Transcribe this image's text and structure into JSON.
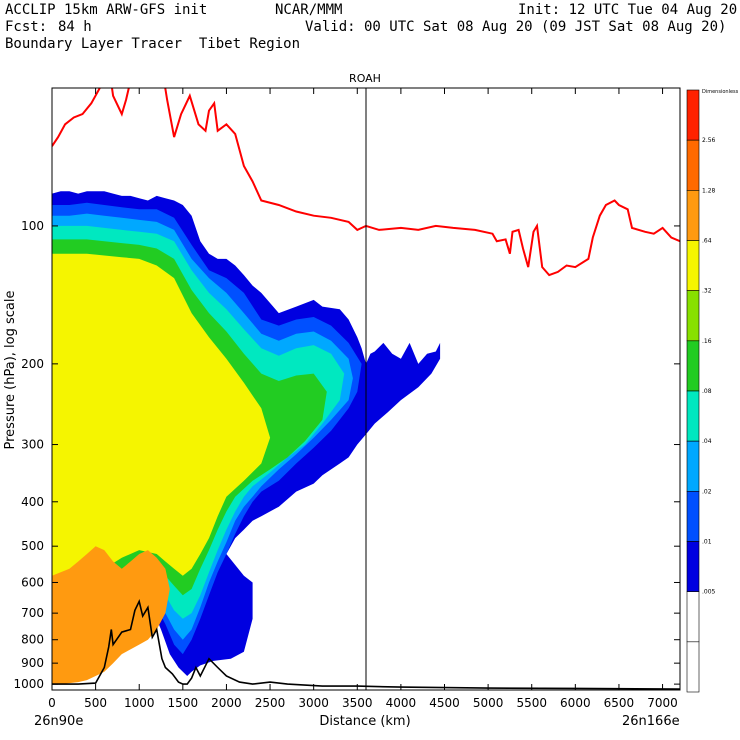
{
  "header": {
    "model": "ACCLIP 15km ARW-GFS init",
    "org": "NCAR/MMM",
    "init": "Init: 12 UTC Tue 04 Aug 20",
    "fcst_label": "Fcst:",
    "fcst_value": "84 h",
    "valid": "Valid: 00 UTC Sat 08 Aug 20 (09 JST Sat 08 Aug 20)",
    "product": "Boundary Layer Tracer  Tibet Region"
  },
  "chart_data": {
    "type": "heatmap",
    "title": "ROAH",
    "xlabel": "Distance (km)",
    "ylabel": "Pressure (hPa), log scale",
    "xlim": [
      0,
      7200
    ],
    "ylim": [
      1030,
      50
    ],
    "x_ticks": [
      0,
      500,
      1000,
      1500,
      2000,
      2500,
      3000,
      3500,
      4000,
      4500,
      5000,
      5500,
      6000,
      6500,
      7000
    ],
    "y_ticks": [
      100,
      200,
      300,
      400,
      500,
      600,
      700,
      800,
      900,
      1000
    ],
    "x_start_label": "26n90e",
    "x_end_label": "26n166e",
    "vertical_marker_km": 3600,
    "colorbar": {
      "labels": [
        "Dimensionless",
        "2.56",
        "1.28",
        ".64",
        ".32",
        ".16",
        ".08",
        ".04",
        ".02",
        ".01",
        ".005"
      ],
      "colors": [
        "#ff2200",
        "#ff6a00",
        "#ff9a10",
        "#f5f500",
        "#88e000",
        "#22cc22",
        "#00e8c0",
        "#00a8ff",
        "#0050ff",
        "#0000e0",
        "#ffffff",
        "#ffffff"
      ]
    },
    "tropopause_line": {
      "color": "#ff0000",
      "x": [
        0,
        70,
        150,
        250,
        350,
        450,
        600,
        660,
        700,
        800,
        850,
        880,
        960,
        1050,
        1130,
        1200,
        1260,
        1320,
        1400,
        1480,
        1500,
        1580,
        1680,
        1760,
        1800,
        1860,
        1900,
        2000,
        2100,
        2200,
        2300,
        2400,
        2600,
        2800,
        3000,
        3200,
        3400,
        3500,
        3600,
        3750,
        4000,
        4200,
        4400,
        4600,
        4850,
        5050,
        5100,
        5200,
        5250,
        5280,
        5350,
        5400,
        5460,
        5520,
        5560,
        5620,
        5700,
        5800,
        5900,
        6000,
        6150,
        6200,
        6280,
        6350,
        6450,
        6500,
        6600,
        6650,
        6800,
        6900,
        7000,
        7100,
        7200
      ],
      "p": [
        67,
        64,
        60,
        58,
        57,
        54,
        48,
        46,
        52,
        57,
        53,
        50,
        44,
        28,
        30,
        27,
        45,
        53,
        64,
        57,
        56,
        52,
        60,
        62,
        56,
        54,
        62,
        60,
        63,
        74,
        80,
        88,
        90,
        93,
        95,
        96,
        98,
        102,
        100,
        102,
        101,
        102,
        100,
        101,
        102,
        104,
        108,
        107,
        115,
        103,
        102,
        112,
        123,
        103,
        100,
        123,
        128,
        126,
        122,
        123,
        118,
        106,
        95,
        90,
        88,
        90,
        92,
        101,
        103,
        104,
        101,
        106,
        108
      ]
    },
    "terrain_line": {
      "color": "#000000",
      "x": [
        0,
        300,
        500,
        600,
        650,
        680,
        700,
        800,
        900,
        950,
        1000,
        1040,
        1100,
        1150,
        1200,
        1260,
        1300,
        1380,
        1450,
        1500,
        1550,
        1600,
        1650,
        1700,
        1800,
        1900,
        2000,
        2150,
        2300,
        2500,
        2700,
        2900,
        3100,
        3500,
        4000,
        5000,
        6000,
        7200
      ],
      "p": [
        1000,
        1000,
        995,
        920,
        830,
        760,
        820,
        770,
        760,
        690,
        660,
        710,
        680,
        790,
        760,
        880,
        920,
        950,
        990,
        1000,
        1000,
        970,
        920,
        960,
        880,
        920,
        960,
        990,
        1000,
        990,
        1000,
        1005,
        1010,
        1010,
        1015,
        1020,
        1022,
        1025
      ]
    },
    "tracer_fields": [
      {
        "level": "0.01",
        "color": "#0000e0",
        "x": [
          0,
          100,
          200,
          300,
          400,
          500,
          600,
          700,
          800,
          900,
          1000,
          1100,
          1200,
          1300,
          1400,
          1500,
          1600,
          1700,
          1800,
          1900,
          2000,
          2100,
          2200,
          2300,
          2400,
          2600,
          2800,
          3000,
          3100,
          3300,
          3400,
          3500,
          3550,
          3600,
          3650,
          3700,
          3800,
          3900,
          4000,
          4100,
          4200,
          4300,
          4400,
          4450,
          4450,
          4350,
          4200,
          4000,
          3850,
          3700,
          3600,
          3500,
          3400,
          3300,
          3200,
          3100,
          3000,
          2800,
          2600,
          2400,
          2300,
          2200,
          2100,
          2000,
          2200,
          2300,
          2300,
          2200,
          2050,
          1850,
          1700,
          1600,
          1550,
          1450,
          1350,
          1250,
          1100,
          1000,
          900,
          700,
          600,
          500,
          300,
          0
        ],
        "p": [
          85,
          84,
          84,
          85,
          84,
          84,
          84,
          85,
          86,
          86,
          87,
          88,
          86,
          87,
          88,
          90,
          95,
          108,
          115,
          118,
          118,
          122,
          128,
          135,
          140,
          155,
          150,
          145,
          150,
          152,
          160,
          175,
          185,
          200,
          190,
          188,
          180,
          190,
          195,
          180,
          200,
          190,
          188,
          180,
          195,
          210,
          225,
          240,
          255,
          270,
          285,
          300,
          320,
          330,
          340,
          350,
          365,
          380,
          410,
          430,
          440,
          460,
          480,
          520,
          580,
          600,
          720,
          850,
          880,
          890,
          910,
          940,
          960,
          920,
          860,
          760,
          650,
          600,
          620,
          640,
          660,
          690,
          780,
          820
        ]
      },
      {
        "level": "0.02",
        "color": "#0050ff",
        "x": [
          0,
          200,
          400,
          600,
          800,
          1000,
          1200,
          1400,
          1600,
          1800,
          2000,
          2200,
          2400,
          2600,
          2800,
          3000,
          3200,
          3400,
          3550,
          3500,
          3400,
          3200,
          3000,
          2800,
          2600,
          2400,
          2300,
          2200,
          2100,
          2000,
          1900,
          1800,
          1700,
          1600,
          1500,
          1400,
          1300,
          1200,
          1000,
          800,
          600,
          400,
          200,
          0
        ],
        "p": [
          90,
          90,
          89,
          90,
          91,
          92,
          92,
          96,
          110,
          125,
          130,
          140,
          160,
          165,
          160,
          158,
          165,
          180,
          200,
          230,
          250,
          280,
          305,
          330,
          360,
          380,
          400,
          430,
          470,
          520,
          570,
          640,
          720,
          800,
          860,
          820,
          740,
          680,
          640,
          660,
          690,
          720,
          760,
          800
        ]
      },
      {
        "level": "0.04",
        "color": "#00a8ff",
        "x": [
          0,
          200,
          400,
          600,
          800,
          1000,
          1200,
          1400,
          1600,
          1800,
          2000,
          2200,
          2400,
          2600,
          2800,
          3000,
          3200,
          3400,
          3450,
          3400,
          3200,
          3000,
          2800,
          2600,
          2400,
          2300,
          2200,
          2100,
          2000,
          1900,
          1800,
          1700,
          1600,
          1500,
          1400,
          1300,
          1200,
          1000,
          800,
          600,
          400,
          200,
          0
        ],
        "p": [
          95,
          95,
          94,
          95,
          96,
          97,
          98,
          102,
          118,
          130,
          140,
          155,
          172,
          178,
          172,
          170,
          178,
          195,
          215,
          240,
          265,
          290,
          315,
          340,
          370,
          390,
          410,
          440,
          490,
          540,
          600,
          680,
          760,
          800,
          760,
          700,
          650,
          620,
          630,
          650,
          690,
          730,
          780
        ]
      },
      {
        "level": "0.08",
        "color": "#00e8c0",
        "x": [
          0,
          200,
          400,
          600,
          800,
          1000,
          1200,
          1400,
          1600,
          1800,
          2000,
          2200,
          2400,
          2600,
          2800,
          3000,
          3200,
          3350,
          3300,
          3100,
          2900,
          2700,
          2500,
          2300,
          2200,
          2100,
          2000,
          1900,
          1800,
          1700,
          1600,
          1500,
          1400,
          1300,
          1200,
          1000,
          800,
          600,
          400,
          200,
          0
        ],
        "p": [
          100,
          100,
          100,
          101,
          102,
          103,
          104,
          108,
          125,
          140,
          152,
          168,
          185,
          192,
          185,
          182,
          190,
          210,
          240,
          270,
          300,
          320,
          345,
          370,
          390,
          420,
          460,
          510,
          570,
          640,
          700,
          720,
          690,
          640,
          610,
          590,
          610,
          640,
          680,
          720,
          760
        ]
      },
      {
        "level": "0.16",
        "color": "#22cc22",
        "x": [
          0,
          200,
          400,
          600,
          800,
          1000,
          1200,
          1400,
          1600,
          1800,
          2000,
          2200,
          2400,
          2600,
          2800,
          3000,
          3150,
          3100,
          2900,
          2700,
          2500,
          2300,
          2100,
          2000,
          1900,
          1800,
          1700,
          1600,
          1500,
          1400,
          1300,
          1200,
          1000,
          800,
          600,
          400,
          200,
          0
        ],
        "p": [
          107,
          107,
          107,
          108,
          109,
          110,
          112,
          118,
          138,
          155,
          170,
          190,
          210,
          218,
          212,
          210,
          230,
          265,
          295,
          320,
          340,
          360,
          390,
          420,
          460,
          510,
          560,
          620,
          640,
          610,
          580,
          560,
          550,
          570,
          600,
          640,
          680,
          720
        ]
      },
      {
        "level": "0.32",
        "color": "#f5f500",
        "x": [
          0,
          200,
          400,
          600,
          800,
          1000,
          1200,
          1400,
          1600,
          1800,
          2000,
          2200,
          2400,
          2500,
          2400,
          2200,
          2000,
          1900,
          1800,
          1700,
          1600,
          1500,
          1400,
          1300,
          1200,
          1000,
          800,
          600,
          400,
          200,
          0
        ],
        "p": [
          115,
          115,
          115,
          116,
          117,
          118,
          122,
          130,
          155,
          175,
          195,
          220,
          250,
          290,
          330,
          360,
          390,
          430,
          480,
          520,
          560,
          580,
          560,
          540,
          520,
          510,
          530,
          560,
          600,
          640,
          680
        ]
      },
      {
        "level": "0.64",
        "color": "#ff9a10",
        "x": [
          0,
          200,
          300,
          400,
          500,
          600,
          700,
          800,
          900,
          1000,
          1100,
          1200,
          1300,
          1350,
          1300,
          1200,
          1100,
          1000,
          900,
          800,
          700,
          600,
          500,
          400,
          300,
          200,
          100,
          0
        ],
        "p": [
          580,
          560,
          540,
          520,
          500,
          510,
          540,
          560,
          540,
          520,
          510,
          530,
          560,
          620,
          700,
          760,
          800,
          820,
          840,
          860,
          900,
          940,
          960,
          980,
          990,
          995,
          1000,
          1000
        ]
      }
    ]
  }
}
